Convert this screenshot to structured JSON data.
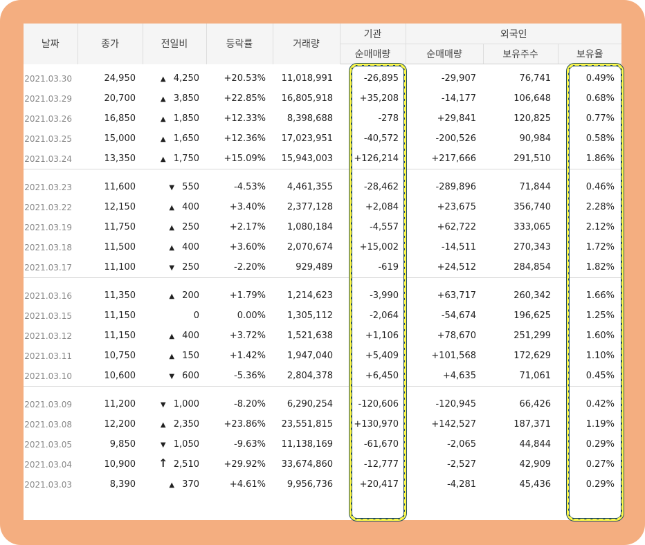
{
  "headers": {
    "date": "날짜",
    "close": "종가",
    "change": "전일비",
    "rate": "등락률",
    "volume": "거래량",
    "institution": "기관",
    "foreign": "외국인",
    "inst_net": "순매매량",
    "foreign_net": "순매매량",
    "holdings": "보유주수",
    "holding_ratio": "보유율"
  },
  "groups": [
    [
      {
        "date": "2021.03.30",
        "close": "24,950",
        "dir": "up",
        "mark": "▲",
        "change": "4,250",
        "rate": "+20.53%",
        "volume": "11,018,991",
        "inst": "-26,895",
        "inst_dir": "down",
        "foreign": "-29,907",
        "foreign_dir": "down",
        "holdings": "76,741",
        "ratio": "0.49%"
      },
      {
        "date": "2021.03.29",
        "close": "20,700",
        "dir": "up",
        "mark": "▲",
        "change": "3,850",
        "rate": "+22.85%",
        "volume": "16,805,918",
        "inst": "+35,208",
        "inst_dir": "up",
        "foreign": "-14,177",
        "foreign_dir": "down",
        "holdings": "106,648",
        "ratio": "0.68%"
      },
      {
        "date": "2021.03.26",
        "close": "16,850",
        "dir": "up",
        "mark": "▲",
        "change": "1,850",
        "rate": "+12.33%",
        "volume": "8,398,688",
        "inst": "-278",
        "inst_dir": "down",
        "foreign": "+29,841",
        "foreign_dir": "up",
        "holdings": "120,825",
        "ratio": "0.77%"
      },
      {
        "date": "2021.03.25",
        "close": "15,000",
        "dir": "up",
        "mark": "▲",
        "change": "1,650",
        "rate": "+12.36%",
        "volume": "17,023,951",
        "inst": "-40,572",
        "inst_dir": "down",
        "foreign": "-200,526",
        "foreign_dir": "down",
        "holdings": "90,984",
        "ratio": "0.58%"
      },
      {
        "date": "2021.03.24",
        "close": "13,350",
        "dir": "up",
        "mark": "▲",
        "change": "1,750",
        "rate": "+15.09%",
        "volume": "15,943,003",
        "inst": "+126,214",
        "inst_dir": "up",
        "foreign": "+217,666",
        "foreign_dir": "up",
        "holdings": "291,510",
        "ratio": "1.86%"
      }
    ],
    [
      {
        "date": "2021.03.23",
        "close": "11,600",
        "dir": "down",
        "mark": "▼",
        "change": "550",
        "rate": "-4.53%",
        "volume": "4,461,355",
        "inst": "-28,462",
        "inst_dir": "down",
        "foreign": "-289,896",
        "foreign_dir": "down",
        "holdings": "71,844",
        "ratio": "0.46%"
      },
      {
        "date": "2021.03.22",
        "close": "12,150",
        "dir": "up",
        "mark": "▲",
        "change": "400",
        "rate": "+3.40%",
        "volume": "2,377,128",
        "inst": "+2,084",
        "inst_dir": "up",
        "foreign": "+23,675",
        "foreign_dir": "up",
        "holdings": "356,740",
        "ratio": "2.28%"
      },
      {
        "date": "2021.03.19",
        "close": "11,750",
        "dir": "up",
        "mark": "▲",
        "change": "250",
        "rate": "+2.17%",
        "volume": "1,080,184",
        "inst": "-4,557",
        "inst_dir": "down",
        "foreign": "+62,722",
        "foreign_dir": "up",
        "holdings": "333,065",
        "ratio": "2.12%"
      },
      {
        "date": "2021.03.18",
        "close": "11,500",
        "dir": "up",
        "mark": "▲",
        "change": "400",
        "rate": "+3.60%",
        "volume": "2,070,674",
        "inst": "+15,002",
        "inst_dir": "up",
        "foreign": "-14,511",
        "foreign_dir": "down",
        "holdings": "270,343",
        "ratio": "1.72%"
      },
      {
        "date": "2021.03.17",
        "close": "11,100",
        "dir": "down",
        "mark": "▼",
        "change": "250",
        "rate": "-2.20%",
        "volume": "929,489",
        "inst": "-619",
        "inst_dir": "down",
        "foreign": "+24,512",
        "foreign_dir": "up",
        "holdings": "284,854",
        "ratio": "1.82%"
      }
    ],
    [
      {
        "date": "2021.03.16",
        "close": "11,350",
        "dir": "up",
        "mark": "▲",
        "change": "200",
        "rate": "+1.79%",
        "volume": "1,214,623",
        "inst": "-3,990",
        "inst_dir": "down",
        "foreign": "+63,717",
        "foreign_dir": "up",
        "holdings": "260,342",
        "ratio": "1.66%"
      },
      {
        "date": "2021.03.15",
        "close": "11,150",
        "dir": "flat",
        "mark": "",
        "change": "0",
        "rate": "0.00%",
        "volume": "1,305,112",
        "inst": "-2,064",
        "inst_dir": "down",
        "foreign": "-54,674",
        "foreign_dir": "down",
        "holdings": "196,625",
        "ratio": "1.25%"
      },
      {
        "date": "2021.03.12",
        "close": "11,150",
        "dir": "up",
        "mark": "▲",
        "change": "400",
        "rate": "+3.72%",
        "volume": "1,521,638",
        "inst": "+1,106",
        "inst_dir": "up",
        "foreign": "+78,670",
        "foreign_dir": "up",
        "holdings": "251,299",
        "ratio": "1.60%"
      },
      {
        "date": "2021.03.11",
        "close": "10,750",
        "dir": "up",
        "mark": "▲",
        "change": "150",
        "rate": "+1.42%",
        "volume": "1,947,040",
        "inst": "+5,409",
        "inst_dir": "up",
        "foreign": "+101,568",
        "foreign_dir": "up",
        "holdings": "172,629",
        "ratio": "1.10%"
      },
      {
        "date": "2021.03.10",
        "close": "10,600",
        "dir": "down",
        "mark": "▼",
        "change": "600",
        "rate": "-5.36%",
        "volume": "2,804,378",
        "inst": "+6,450",
        "inst_dir": "up",
        "foreign": "+4,635",
        "foreign_dir": "up",
        "holdings": "71,061",
        "ratio": "0.45%"
      }
    ],
    [
      {
        "date": "2021.03.09",
        "close": "11,200",
        "dir": "down",
        "mark": "▼",
        "change": "1,000",
        "rate": "-8.20%",
        "volume": "6,290,254",
        "inst": "-120,606",
        "inst_dir": "down",
        "foreign": "-120,945",
        "foreign_dir": "down",
        "holdings": "66,426",
        "ratio": "0.42%"
      },
      {
        "date": "2021.03.08",
        "close": "12,200",
        "dir": "up",
        "mark": "▲",
        "change": "2,350",
        "rate": "+23.86%",
        "volume": "23,551,815",
        "inst": "+130,970",
        "inst_dir": "up",
        "foreign": "+142,527",
        "foreign_dir": "up",
        "holdings": "187,371",
        "ratio": "1.19%"
      },
      {
        "date": "2021.03.05",
        "close": "9,850",
        "dir": "down",
        "mark": "▼",
        "change": "1,050",
        "rate": "-9.63%",
        "volume": "11,138,169",
        "inst": "-61,670",
        "inst_dir": "down",
        "foreign": "-2,065",
        "foreign_dir": "down",
        "holdings": "44,844",
        "ratio": "0.29%"
      },
      {
        "date": "2021.03.04",
        "close": "10,900",
        "dir": "up",
        "mark": "↑",
        "change": "2,510",
        "rate": "+29.92%",
        "volume": "33,674,860",
        "inst": "-12,777",
        "inst_dir": "down",
        "foreign": "-2,527",
        "foreign_dir": "down",
        "holdings": "42,909",
        "ratio": "0.27%"
      },
      {
        "date": "2021.03.03",
        "close": "8,390",
        "dir": "up",
        "mark": "▲",
        "change": "370",
        "rate": "+4.61%",
        "volume": "9,956,736",
        "inst": "+20,417",
        "inst_dir": "up",
        "foreign": "-4,281",
        "foreign_dir": "down",
        "holdings": "45,436",
        "ratio": "0.29%"
      }
    ]
  ],
  "colors": {
    "up": "#e3212b",
    "down": "#1d6ad8",
    "frame": "#f4ae80",
    "highlight_outline": "#fff94a",
    "highlight_border": "#1f4b5f"
  },
  "icons": {
    "up": "triangle-up-icon",
    "down": "triangle-down-icon",
    "limit_up": "arrow-up-icon"
  }
}
